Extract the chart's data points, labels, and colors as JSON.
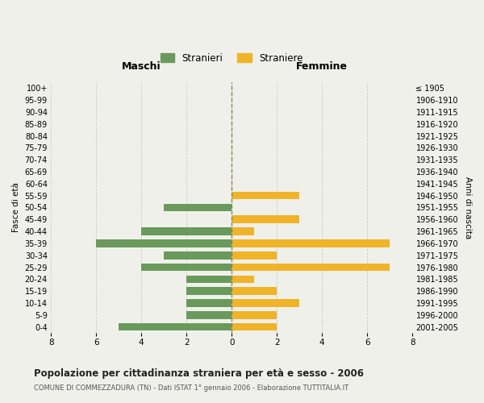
{
  "age_groups": [
    "100+",
    "95-99",
    "90-94",
    "85-89",
    "80-84",
    "75-79",
    "70-74",
    "65-69",
    "60-64",
    "55-59",
    "50-54",
    "45-49",
    "40-44",
    "35-39",
    "30-34",
    "25-29",
    "20-24",
    "15-19",
    "10-14",
    "5-9",
    "0-4"
  ],
  "birth_years": [
    "≤ 1905",
    "1906-1910",
    "1911-1915",
    "1916-1920",
    "1921-1925",
    "1926-1930",
    "1931-1935",
    "1936-1940",
    "1941-1945",
    "1946-1950",
    "1951-1955",
    "1956-1960",
    "1961-1965",
    "1966-1970",
    "1971-1975",
    "1976-1980",
    "1981-1985",
    "1986-1990",
    "1991-1995",
    "1996-2000",
    "2001-2005"
  ],
  "maschi": [
    0,
    0,
    0,
    0,
    0,
    0,
    0,
    0,
    0,
    0,
    3,
    0,
    4,
    6,
    3,
    4,
    2,
    2,
    2,
    2,
    5
  ],
  "femmine": [
    0,
    0,
    0,
    0,
    0,
    0,
    0,
    0,
    0,
    3,
    0,
    3,
    1,
    7,
    2,
    7,
    1,
    2,
    3,
    2,
    2
  ],
  "color_maschi": "#6a9a5b",
  "color_femmine": "#f0b429",
  "background_color": "#f0f0eb",
  "grid_color": "#cccccc",
  "title": "Popolazione per cittadinanza straniera per età e sesso - 2006",
  "subtitle": "COMUNE DI COMMEZZADURA (TN) - Dati ISTAT 1° gennaio 2006 - Elaborazione TUTTITALIA.IT",
  "xlabel_left": "Maschi",
  "xlabel_right": "Femmine",
  "ylabel_left": "Fasce di età",
  "ylabel_right": "Anni di nascita",
  "legend_maschi": "Stranieri",
  "legend_femmine": "Straniere",
  "xlim": 8,
  "bar_height": 0.65
}
